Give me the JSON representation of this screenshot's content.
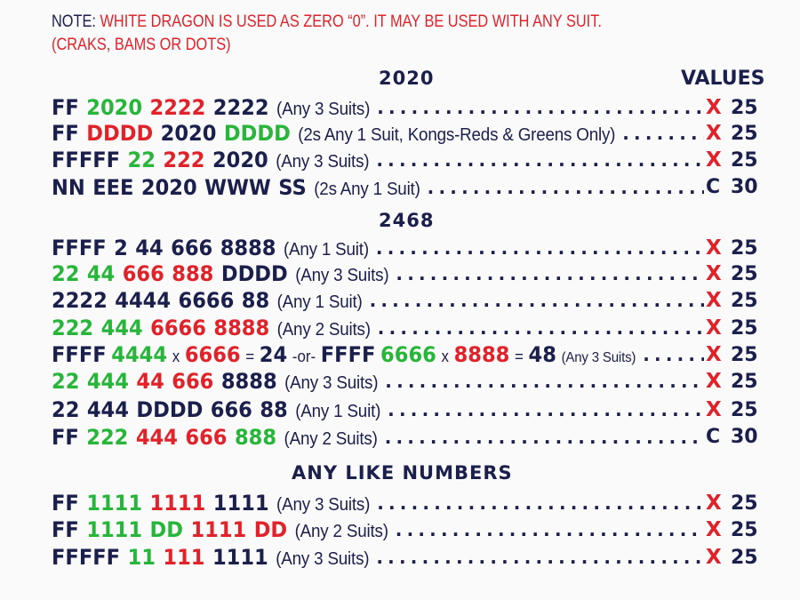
{
  "note": {
    "prefix": "NOTE:",
    "line1": " WHITE DRAGON IS USED AS ZERO “0”. IT MAY BE USED WITH ANY SUIT.",
    "line2": "(CRAKS, BAMS OR DOTS)"
  },
  "values_heading": "VALUES",
  "leader_dots": "........................................................................................",
  "sections": [
    {
      "title": "2020"
    },
    {
      "title": "2468"
    },
    {
      "title": "ANY LIKE NUMBERS"
    }
  ],
  "hands": [
    {
      "tiles": [
        {
          "t": "FF",
          "c": "k"
        },
        {
          "t": "2020",
          "c": "g"
        },
        {
          "t": "2222",
          "c": "r"
        },
        {
          "t": "2222",
          "c": "k"
        }
      ],
      "desc": "(Any 3 Suits)",
      "mark": "X",
      "points": "25"
    },
    {
      "tiles": [
        {
          "t": "FF",
          "c": "k"
        },
        {
          "t": "DDDD",
          "c": "r"
        },
        {
          "t": "2020",
          "c": "k"
        },
        {
          "t": "DDDD",
          "c": "g"
        }
      ],
      "desc": "(2s Any 1 Suit, Kongs-Reds & Greens Only)",
      "mark": "X",
      "points": "25"
    },
    {
      "tiles": [
        {
          "t": "FFFFF",
          "c": "k"
        },
        {
          "t": "22",
          "c": "g"
        },
        {
          "t": "222",
          "c": "r"
        },
        {
          "t": "2020",
          "c": "k"
        }
      ],
      "desc": "(Any 3 Suits)",
      "mark": "X",
      "points": "25"
    },
    {
      "tiles": [
        {
          "t": "NN",
          "c": "k"
        },
        {
          "t": "EEE",
          "c": "k"
        },
        {
          "t": "2020",
          "c": "k"
        },
        {
          "t": "WWW",
          "c": "k"
        },
        {
          "t": "SS",
          "c": "k"
        }
      ],
      "desc": "(2s Any 1 Suit)",
      "mark": "C",
      "points": "30"
    },
    {
      "tiles": [
        {
          "t": "FFFF",
          "c": "k"
        },
        {
          "t": "2",
          "c": "k"
        },
        {
          "t": "44",
          "c": "k"
        },
        {
          "t": "666",
          "c": "k"
        },
        {
          "t": "8888",
          "c": "k"
        }
      ],
      "desc": "(Any 1 Suit)",
      "mark": "X",
      "points": "25"
    },
    {
      "tiles": [
        {
          "t": "22",
          "c": "g"
        },
        {
          "t": "44",
          "c": "g"
        },
        {
          "t": "666",
          "c": "r"
        },
        {
          "t": "888",
          "c": "r"
        },
        {
          "t": "DDDD",
          "c": "k"
        }
      ],
      "desc": "(Any 3 Suits)",
      "mark": "X",
      "points": "25"
    },
    {
      "tiles": [
        {
          "t": "2222",
          "c": "k"
        },
        {
          "t": "4444",
          "c": "k"
        },
        {
          "t": "6666",
          "c": "k"
        },
        {
          "t": "88",
          "c": "k"
        }
      ],
      "desc": "(Any 1 Suit)",
      "mark": "X",
      "points": "25"
    },
    {
      "tiles": [
        {
          "t": "222",
          "c": "g"
        },
        {
          "t": "444",
          "c": "g"
        },
        {
          "t": "6666",
          "c": "r"
        },
        {
          "t": "8888",
          "c": "r"
        }
      ],
      "desc": "(Any 2 Suits)",
      "mark": "X",
      "points": "25"
    },
    {
      "special": true,
      "parts": [
        {
          "t": "FFFF",
          "c": "k"
        },
        {
          "t": "4444",
          "c": "g"
        },
        {
          "op": "x"
        },
        {
          "t": "6666",
          "c": "r"
        },
        {
          "op": "="
        },
        {
          "t": "24",
          "c": "k"
        },
        {
          "op": "-or-"
        },
        {
          "t": "FFFF",
          "c": "k"
        },
        {
          "t": "6666",
          "c": "g"
        },
        {
          "op": "x"
        },
        {
          "t": "8888",
          "c": "r"
        },
        {
          "op": "="
        },
        {
          "t": "48",
          "c": "k"
        }
      ],
      "desc": "(Any 3 Suits)",
      "mark": "X",
      "points": "25"
    },
    {
      "tiles": [
        {
          "t": "22",
          "c": "g"
        },
        {
          "t": "444",
          "c": "g"
        },
        {
          "t": "44",
          "c": "r"
        },
        {
          "t": "666",
          "c": "r"
        },
        {
          "t": "8888",
          "c": "k"
        }
      ],
      "desc": "(Any 3 Suits)",
      "mark": "X",
      "points": "25"
    },
    {
      "tiles": [
        {
          "t": "22",
          "c": "k"
        },
        {
          "t": "444",
          "c": "k"
        },
        {
          "t": "DDDD",
          "c": "k"
        },
        {
          "t": "666",
          "c": "k"
        },
        {
          "t": "88",
          "c": "k"
        }
      ],
      "desc": "(Any 1 Suit)",
      "mark": "X",
      "points": "25"
    },
    {
      "tiles": [
        {
          "t": "FF",
          "c": "k"
        },
        {
          "t": "222",
          "c": "g"
        },
        {
          "t": "444",
          "c": "r"
        },
        {
          "t": "666",
          "c": "r"
        },
        {
          "t": "888",
          "c": "g"
        }
      ],
      "desc": "(Any 2 Suits)",
      "mark": "C",
      "points": "30"
    },
    {
      "tiles": [
        {
          "t": "FF",
          "c": "k"
        },
        {
          "t": "1111",
          "c": "g"
        },
        {
          "t": "1111",
          "c": "r"
        },
        {
          "t": "1111",
          "c": "k"
        }
      ],
      "desc": "(Any 3 Suits)",
      "mark": "X",
      "points": "25"
    },
    {
      "tiles": [
        {
          "t": "FF",
          "c": "k"
        },
        {
          "t": "1111",
          "c": "g"
        },
        {
          "t": "DD",
          "c": "g"
        },
        {
          "t": "1111",
          "c": "r"
        },
        {
          "t": "DD",
          "c": "r"
        }
      ],
      "desc": "(Any 2 Suits)",
      "mark": "X",
      "points": "25"
    },
    {
      "tiles": [
        {
          "t": "FFFFF",
          "c": "k"
        },
        {
          "t": "11",
          "c": "g"
        },
        {
          "t": "111",
          "c": "r"
        },
        {
          "t": "1111",
          "c": "k"
        }
      ],
      "desc": "(Any 3 Suits)",
      "mark": "X",
      "points": "25"
    }
  ]
}
